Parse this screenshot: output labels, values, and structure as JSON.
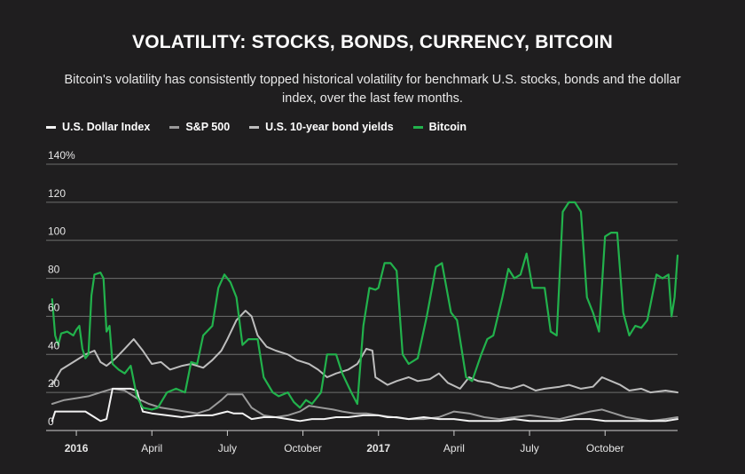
{
  "title": "VOLATILITY: STOCKS, BONDS, CURRENCY, BITCOIN",
  "subtitle": "Bitcoin's volatility has consistently topped historical volatility for benchmark U.S. stocks, bonds and the dollar index, over the last few months.",
  "legend": [
    {
      "label": "U.S. Dollar Index",
      "color": "#f2f2f2"
    },
    {
      "label": "S&P 500",
      "color": "#9a9a9a"
    },
    {
      "label": "U.S. 10-year bond yields",
      "color": "#bdbdbd"
    },
    {
      "label": "Bitcoin",
      "color": "#22b24c"
    }
  ],
  "chart_data": {
    "type": "line",
    "title": "VOLATILITY: STOCKS, BONDS, CURRENCY, BITCOIN",
    "ylim": [
      0,
      140
    ],
    "xlim": [
      2015.9,
      2017.99
    ],
    "y_ticks": [
      {
        "value": 0,
        "label": "0"
      },
      {
        "value": 20,
        "label": "20"
      },
      {
        "value": 40,
        "label": "40"
      },
      {
        "value": 60,
        "label": "60"
      },
      {
        "value": 80,
        "label": "80"
      },
      {
        "value": 100,
        "label": "100"
      },
      {
        "value": 120,
        "label": "120"
      },
      {
        "value": 140,
        "label": "140%"
      }
    ],
    "x_ticks": [
      {
        "value": 2016.0,
        "label": "2016"
      },
      {
        "value": 2016.25,
        "label": "April"
      },
      {
        "value": 2016.5,
        "label": "July"
      },
      {
        "value": 2016.75,
        "label": "October"
      },
      {
        "value": 2017.0,
        "label": "2017"
      },
      {
        "value": 2017.25,
        "label": "April"
      },
      {
        "value": 2017.5,
        "label": "July"
      },
      {
        "value": 2017.75,
        "label": "October"
      }
    ],
    "grid": true,
    "legend_position": "top-left",
    "series": [
      {
        "name": "U.S. 10-year bond yields",
        "color": "#bdbdbd",
        "points": [
          [
            2015.92,
            24
          ],
          [
            2015.95,
            32
          ],
          [
            2015.99,
            36
          ],
          [
            2016.03,
            40
          ],
          [
            2016.06,
            42
          ],
          [
            2016.08,
            36
          ],
          [
            2016.1,
            34
          ],
          [
            2016.13,
            38
          ],
          [
            2016.16,
            43
          ],
          [
            2016.19,
            48
          ],
          [
            2016.22,
            42
          ],
          [
            2016.25,
            35
          ],
          [
            2016.28,
            36
          ],
          [
            2016.31,
            32
          ],
          [
            2016.35,
            34
          ],
          [
            2016.38,
            35
          ],
          [
            2016.42,
            33
          ],
          [
            2016.45,
            37
          ],
          [
            2016.48,
            42
          ],
          [
            2016.5,
            48
          ],
          [
            2016.53,
            58
          ],
          [
            2016.56,
            63
          ],
          [
            2016.58,
            60
          ],
          [
            2016.6,
            50
          ],
          [
            2016.63,
            44
          ],
          [
            2016.66,
            42
          ],
          [
            2016.7,
            40
          ],
          [
            2016.73,
            37
          ],
          [
            2016.77,
            35
          ],
          [
            2016.8,
            32
          ],
          [
            2016.83,
            28
          ],
          [
            2016.86,
            30
          ],
          [
            2016.9,
            32
          ],
          [
            2016.93,
            35
          ],
          [
            2016.96,
            43
          ],
          [
            2016.98,
            42
          ],
          [
            2016.99,
            28
          ],
          [
            2017.03,
            24
          ],
          [
            2017.06,
            26
          ],
          [
            2017.1,
            28
          ],
          [
            2017.13,
            26
          ],
          [
            2017.17,
            27
          ],
          [
            2017.2,
            30
          ],
          [
            2017.23,
            25
          ],
          [
            2017.27,
            22
          ],
          [
            2017.3,
            28
          ],
          [
            2017.33,
            26
          ],
          [
            2017.37,
            25
          ],
          [
            2017.4,
            23
          ],
          [
            2017.44,
            22
          ],
          [
            2017.48,
            24
          ],
          [
            2017.52,
            21
          ],
          [
            2017.55,
            22
          ],
          [
            2017.6,
            23
          ],
          [
            2017.63,
            24
          ],
          [
            2017.67,
            22
          ],
          [
            2017.71,
            23
          ],
          [
            2017.74,
            28
          ],
          [
            2017.77,
            26
          ],
          [
            2017.8,
            24
          ],
          [
            2017.83,
            21
          ],
          [
            2017.87,
            22
          ],
          [
            2017.9,
            20
          ],
          [
            2017.95,
            21
          ],
          [
            2017.99,
            20
          ]
        ]
      },
      {
        "name": "S&P 500",
        "color": "#9a9a9a",
        "points": [
          [
            2015.92,
            14
          ],
          [
            2015.96,
            16
          ],
          [
            2016.0,
            17
          ],
          [
            2016.04,
            18
          ],
          [
            2016.08,
            20
          ],
          [
            2016.12,
            22
          ],
          [
            2016.16,
            21
          ],
          [
            2016.2,
            17
          ],
          [
            2016.24,
            14
          ],
          [
            2016.28,
            12
          ],
          [
            2016.32,
            11
          ],
          [
            2016.36,
            10
          ],
          [
            2016.4,
            9
          ],
          [
            2016.44,
            11
          ],
          [
            2016.48,
            16
          ],
          [
            2016.5,
            19
          ],
          [
            2016.55,
            19
          ],
          [
            2016.58,
            12
          ],
          [
            2016.62,
            8
          ],
          [
            2016.66,
            7
          ],
          [
            2016.7,
            8
          ],
          [
            2016.74,
            10
          ],
          [
            2016.77,
            13
          ],
          [
            2016.81,
            12
          ],
          [
            2016.85,
            11
          ],
          [
            2016.88,
            10
          ],
          [
            2016.92,
            9
          ],
          [
            2016.96,
            9
          ],
          [
            2017.0,
            8
          ],
          [
            2017.05,
            7
          ],
          [
            2017.1,
            6
          ],
          [
            2017.15,
            6
          ],
          [
            2017.2,
            7
          ],
          [
            2017.25,
            10
          ],
          [
            2017.3,
            9
          ],
          [
            2017.35,
            7
          ],
          [
            2017.4,
            6
          ],
          [
            2017.45,
            7
          ],
          [
            2017.5,
            8
          ],
          [
            2017.55,
            7
          ],
          [
            2017.6,
            6
          ],
          [
            2017.65,
            8
          ],
          [
            2017.7,
            10
          ],
          [
            2017.74,
            11
          ],
          [
            2017.78,
            9
          ],
          [
            2017.82,
            7
          ],
          [
            2017.86,
            6
          ],
          [
            2017.9,
            5
          ],
          [
            2017.95,
            6
          ],
          [
            2017.99,
            7
          ]
        ]
      },
      {
        "name": "U.S. Dollar Index",
        "color": "#f2f2f2",
        "points": [
          [
            2015.92,
            5
          ],
          [
            2015.93,
            10
          ],
          [
            2015.96,
            10
          ],
          [
            2016.0,
            10
          ],
          [
            2016.03,
            10
          ],
          [
            2016.06,
            7
          ],
          [
            2016.08,
            5
          ],
          [
            2016.1,
            6
          ],
          [
            2016.12,
            22
          ],
          [
            2016.18,
            22
          ],
          [
            2016.2,
            21
          ],
          [
            2016.22,
            10
          ],
          [
            2016.25,
            9
          ],
          [
            2016.3,
            8
          ],
          [
            2016.35,
            7
          ],
          [
            2016.4,
            8
          ],
          [
            2016.45,
            8
          ],
          [
            2016.5,
            10
          ],
          [
            2016.52,
            9
          ],
          [
            2016.55,
            9
          ],
          [
            2016.58,
            6
          ],
          [
            2016.62,
            7
          ],
          [
            2016.66,
            7
          ],
          [
            2016.7,
            6
          ],
          [
            2016.74,
            5
          ],
          [
            2016.78,
            6
          ],
          [
            2016.82,
            6
          ],
          [
            2016.86,
            7
          ],
          [
            2016.9,
            7
          ],
          [
            2016.95,
            8
          ],
          [
            2017.0,
            8
          ],
          [
            2017.03,
            7
          ],
          [
            2017.06,
            7
          ],
          [
            2017.1,
            6
          ],
          [
            2017.15,
            7
          ],
          [
            2017.2,
            6
          ],
          [
            2017.25,
            6
          ],
          [
            2017.3,
            5
          ],
          [
            2017.35,
            5
          ],
          [
            2017.4,
            5
          ],
          [
            2017.45,
            6
          ],
          [
            2017.5,
            5
          ],
          [
            2017.55,
            5
          ],
          [
            2017.6,
            5
          ],
          [
            2017.65,
            6
          ],
          [
            2017.7,
            6
          ],
          [
            2017.75,
            5
          ],
          [
            2017.8,
            5
          ],
          [
            2017.85,
            5
          ],
          [
            2017.9,
            5
          ],
          [
            2017.95,
            5
          ],
          [
            2017.99,
            6
          ]
        ]
      },
      {
        "name": "Bitcoin",
        "color": "#22b24c",
        "points": [
          [
            2015.92,
            69
          ],
          [
            2015.93,
            50
          ],
          [
            2015.94,
            45
          ],
          [
            2015.95,
            51
          ],
          [
            2015.97,
            52
          ],
          [
            2015.99,
            50
          ],
          [
            2016.0,
            53
          ],
          [
            2016.01,
            55
          ],
          [
            2016.02,
            43
          ],
          [
            2016.03,
            38
          ],
          [
            2016.04,
            40
          ],
          [
            2016.05,
            71
          ],
          [
            2016.06,
            82
          ],
          [
            2016.08,
            83
          ],
          [
            2016.09,
            80
          ],
          [
            2016.1,
            52
          ],
          [
            2016.11,
            55
          ],
          [
            2016.12,
            35
          ],
          [
            2016.14,
            32
          ],
          [
            2016.16,
            30
          ],
          [
            2016.18,
            34
          ],
          [
            2016.2,
            18
          ],
          [
            2016.22,
            12
          ],
          [
            2016.25,
            11
          ],
          [
            2016.27,
            12
          ],
          [
            2016.3,
            20
          ],
          [
            2016.33,
            22
          ],
          [
            2016.36,
            20
          ],
          [
            2016.38,
            36
          ],
          [
            2016.4,
            35
          ],
          [
            2016.42,
            50
          ],
          [
            2016.45,
            55
          ],
          [
            2016.47,
            75
          ],
          [
            2016.49,
            82
          ],
          [
            2016.51,
            78
          ],
          [
            2016.53,
            70
          ],
          [
            2016.55,
            45
          ],
          [
            2016.57,
            48
          ],
          [
            2016.6,
            48
          ],
          [
            2016.62,
            28
          ],
          [
            2016.65,
            20
          ],
          [
            2016.67,
            18
          ],
          [
            2016.7,
            20
          ],
          [
            2016.72,
            15
          ],
          [
            2016.74,
            12
          ],
          [
            2016.76,
            16
          ],
          [
            2016.78,
            14
          ],
          [
            2016.81,
            20
          ],
          [
            2016.83,
            40
          ],
          [
            2016.86,
            40
          ],
          [
            2016.88,
            30
          ],
          [
            2016.91,
            20
          ],
          [
            2016.93,
            14
          ],
          [
            2016.95,
            55
          ],
          [
            2016.97,
            75
          ],
          [
            2016.99,
            74
          ],
          [
            2017.0,
            75
          ],
          [
            2017.02,
            88
          ],
          [
            2017.04,
            88
          ],
          [
            2017.06,
            84
          ],
          [
            2017.08,
            40
          ],
          [
            2017.1,
            35
          ],
          [
            2017.13,
            38
          ],
          [
            2017.16,
            60
          ],
          [
            2017.19,
            86
          ],
          [
            2017.21,
            88
          ],
          [
            2017.24,
            62
          ],
          [
            2017.26,
            58
          ],
          [
            2017.29,
            28
          ],
          [
            2017.31,
            26
          ],
          [
            2017.34,
            40
          ],
          [
            2017.36,
            48
          ],
          [
            2017.38,
            50
          ],
          [
            2017.41,
            70
          ],
          [
            2017.43,
            85
          ],
          [
            2017.45,
            80
          ],
          [
            2017.47,
            82
          ],
          [
            2017.49,
            93
          ],
          [
            2017.51,
            75
          ],
          [
            2017.53,
            75
          ],
          [
            2017.55,
            75
          ],
          [
            2017.57,
            52
          ],
          [
            2017.59,
            50
          ],
          [
            2017.61,
            115
          ],
          [
            2017.63,
            120
          ],
          [
            2017.65,
            120
          ],
          [
            2017.67,
            115
          ],
          [
            2017.69,
            70
          ],
          [
            2017.71,
            62
          ],
          [
            2017.73,
            52
          ],
          [
            2017.75,
            102
          ],
          [
            2017.77,
            104
          ],
          [
            2017.79,
            104
          ],
          [
            2017.81,
            62
          ],
          [
            2017.83,
            50
          ],
          [
            2017.85,
            55
          ],
          [
            2017.87,
            54
          ],
          [
            2017.89,
            58
          ],
          [
            2017.92,
            82
          ],
          [
            2017.94,
            80
          ],
          [
            2017.96,
            82
          ],
          [
            2017.97,
            60
          ],
          [
            2017.98,
            70
          ],
          [
            2017.99,
            92
          ]
        ]
      }
    ]
  }
}
